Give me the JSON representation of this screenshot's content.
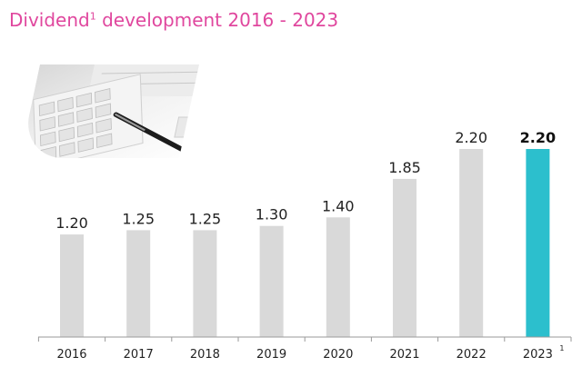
{
  "title": {
    "main": "Dividend",
    "sup": "1",
    "rest": " development 2016 - 2023"
  },
  "colors": {
    "bar": "#d9d9d9",
    "highlight": "#2cbfcd",
    "title": "#e0479e",
    "axis": "#9a9a9a"
  },
  "image": {
    "name": "calculator-and-pen-photo"
  },
  "chart_data": {
    "type": "bar",
    "categories": [
      "2016",
      "2017",
      "2018",
      "2019",
      "2020",
      "2021",
      "2022",
      "2023"
    ],
    "category_superscripts": [
      "",
      "",
      "",
      "",
      "",
      "",
      "",
      "1"
    ],
    "values": [
      1.2,
      1.25,
      1.25,
      1.3,
      1.4,
      1.85,
      2.2,
      2.2
    ],
    "value_labels": [
      "1.20",
      "1.25",
      "1.25",
      "1.30",
      "1.40",
      "1.85",
      "2.20",
      "2.20"
    ],
    "highlight_index": 7,
    "title": "Dividend1 development 2016 - 2023",
    "xlabel": "",
    "ylabel": "",
    "ylim": [
      0,
      2.2
    ],
    "grid": false,
    "legend": "none"
  }
}
